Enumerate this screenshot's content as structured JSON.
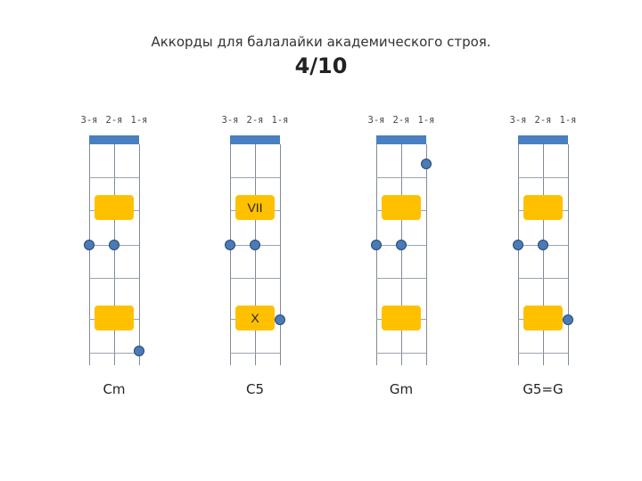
{
  "header": {
    "title": "Аккорды для балалайки академического строя.",
    "page": "4/10"
  },
  "strings": [
    "3-я",
    "2-я",
    "1-я"
  ],
  "colors": {
    "nut": "#4a7fc1",
    "marker": "#ffc000",
    "dot": "#4a7ab8"
  },
  "charts": [
    {
      "name": "Cm",
      "markers": [
        "",
        ""
      ],
      "dots": [
        {
          "string": 0,
          "fret": 3
        },
        {
          "string": 1,
          "fret": 3
        },
        {
          "string": 2,
          "fret": 6
        }
      ]
    },
    {
      "name": "C5",
      "markers": [
        "VII",
        "X"
      ],
      "dots": [
        {
          "string": 0,
          "fret": 3
        },
        {
          "string": 1,
          "fret": 3
        },
        {
          "string": 2,
          "fret": 5
        }
      ]
    },
    {
      "name": "Gm",
      "markers": [
        "",
        ""
      ],
      "dots": [
        {
          "string": 0,
          "fret": 3
        },
        {
          "string": 1,
          "fret": 3
        },
        {
          "string": 2,
          "fret": 1
        }
      ]
    },
    {
      "name": "G5=G",
      "markers": [
        "",
        ""
      ],
      "dots": [
        {
          "string": 0,
          "fret": 3
        },
        {
          "string": 1,
          "fret": 3
        },
        {
          "string": 2,
          "fret": 5
        }
      ]
    }
  ]
}
